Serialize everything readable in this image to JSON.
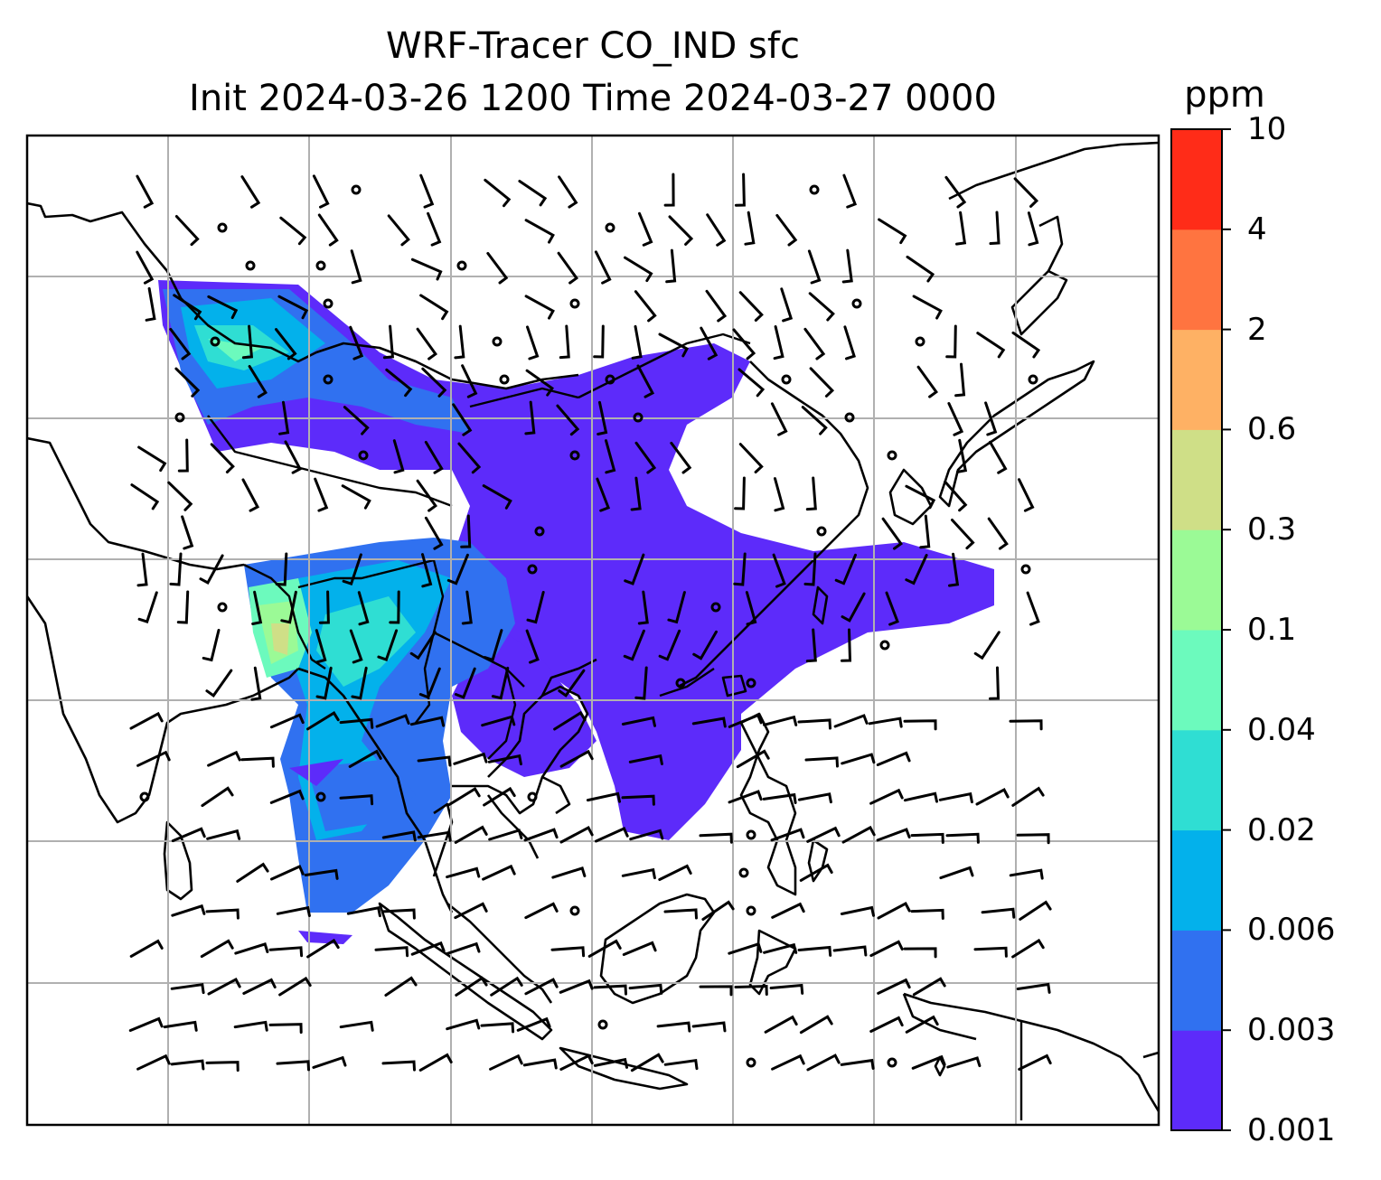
{
  "title": {
    "line1": "WRF-Tracer CO_IND sfc",
    "line2": "Init 2024-03-26 1200 Time 2024-03-27 0000"
  },
  "colorbar": {
    "unit": "ppm",
    "ticks": [
      "0.001",
      "0.003",
      "0.006",
      "0.02",
      "0.04",
      "0.1",
      "0.3",
      "0.6",
      "2",
      "4",
      "10"
    ],
    "colors": [
      "#5d2bfa",
      "#3071f0",
      "#03b1eb",
      "#2fded3",
      "#6cfabd",
      "#9bfa96",
      "#cfdf87",
      "#feb164",
      "#ff7440",
      "#ff2c18"
    ]
  },
  "map": {
    "grid": true,
    "features": [
      "coastlines",
      "borders",
      "wind-barbs",
      "tracer-concentration"
    ]
  }
}
